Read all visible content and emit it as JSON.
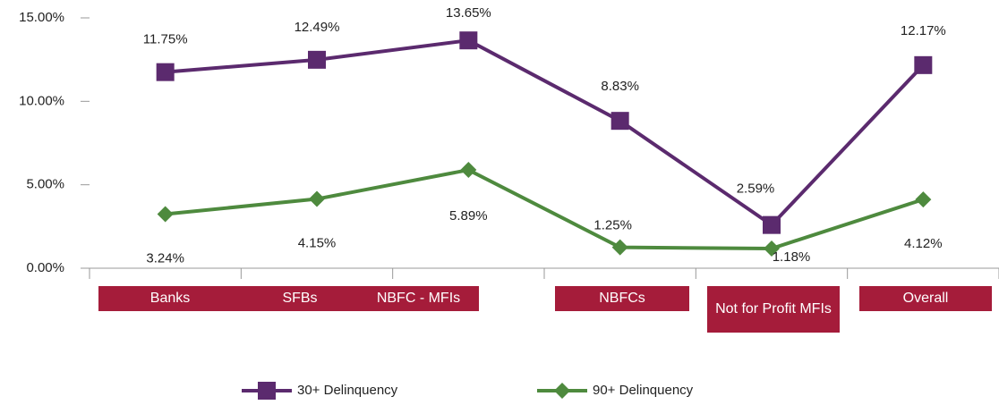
{
  "chart_data": {
    "type": "line",
    "categories": [
      "Banks",
      "SFBs",
      "NBFC - MFIs",
      "NBFCs",
      "Not for Profit MFIs",
      "Overall"
    ],
    "series": [
      {
        "name": "30+ Delinquency",
        "color": "#5b2a6e",
        "marker": "square",
        "values": [
          11.75,
          12.49,
          13.65,
          8.83,
          2.59,
          12.17
        ],
        "value_labels": [
          "11.75%",
          "12.49%",
          "13.65%",
          "8.83%",
          "2.59%",
          "12.17%"
        ]
      },
      {
        "name": "90+ Delinquency",
        "color": "#4e8a3e",
        "marker": "diamond",
        "values": [
          3.24,
          4.15,
          5.89,
          1.25,
          1.18,
          4.12
        ],
        "value_labels": [
          "3.24%",
          "4.15%",
          "5.89%",
          "1.25%",
          "1.18%",
          "4.12%"
        ]
      }
    ],
    "ylim": [
      0,
      15
    ],
    "yticks": [
      {
        "value": 0,
        "label": "0.00%"
      },
      {
        "value": 5,
        "label": "5.00%"
      },
      {
        "value": 10,
        "label": "10.00%"
      },
      {
        "value": 15,
        "label": "15.00%"
      }
    ],
    "legend": "bottom"
  }
}
